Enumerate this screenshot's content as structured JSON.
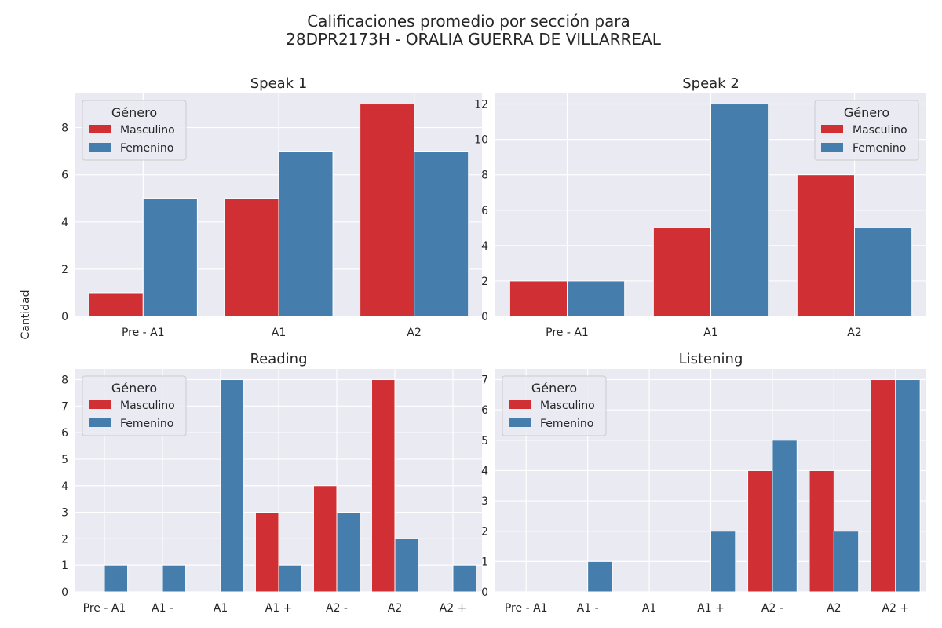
{
  "figure": {
    "title_line1": "Calificaciones promedio por sección para",
    "title_line2": "28DPR2173H - ORALIA GUERRA DE VILLARREAL",
    "ylabel": "Cantidad"
  },
  "colors": {
    "background": "#eaeaf2",
    "grid": "#ffffff",
    "masculino": "#d03033",
    "femenino": "#457dac"
  },
  "chart_data": [
    {
      "type": "bar",
      "title": "Speak 1",
      "categories": [
        "Pre - A1",
        "A1",
        "A2"
      ],
      "series": [
        {
          "name": "Masculino",
          "values": [
            1,
            5,
            9
          ]
        },
        {
          "name": "Femenino",
          "values": [
            5,
            7,
            7
          ]
        }
      ],
      "ylim": [
        0,
        9.45
      ],
      "yticks": [
        0,
        2,
        4,
        6,
        8
      ],
      "legend": {
        "title": "Género",
        "position": "top-left"
      },
      "grid": true
    },
    {
      "type": "bar",
      "title": "Speak 2",
      "categories": [
        "Pre - A1",
        "A1",
        "A2"
      ],
      "series": [
        {
          "name": "Masculino",
          "values": [
            2,
            5,
            8
          ]
        },
        {
          "name": "Femenino",
          "values": [
            2,
            12,
            5
          ]
        }
      ],
      "ylim": [
        0,
        12.6
      ],
      "yticks": [
        0,
        2,
        4,
        6,
        8,
        10,
        12
      ],
      "legend": {
        "title": "Género",
        "position": "top-right"
      },
      "grid": true
    },
    {
      "type": "bar",
      "title": "Reading",
      "categories": [
        "Pre - A1",
        "A1 -",
        "A1",
        "A1 +",
        "A2 -",
        "A2",
        "A2 +"
      ],
      "series": [
        {
          "name": "Masculino",
          "values": [
            0,
            0,
            0,
            3,
            4,
            8,
            0
          ]
        },
        {
          "name": "Femenino",
          "values": [
            1,
            1,
            8,
            1,
            3,
            2,
            1
          ]
        }
      ],
      "ylim": [
        0,
        8.4
      ],
      "yticks": [
        0,
        1,
        2,
        3,
        4,
        5,
        6,
        7,
        8
      ],
      "legend": {
        "title": "Género",
        "position": "top-left"
      },
      "grid": true
    },
    {
      "type": "bar",
      "title": "Listening",
      "categories": [
        "Pre - A1",
        "A1 -",
        "A1",
        "A1 +",
        "A2 -",
        "A2",
        "A2 +"
      ],
      "series": [
        {
          "name": "Masculino",
          "values": [
            0,
            0,
            0,
            0,
            4,
            4,
            7
          ]
        },
        {
          "name": "Femenino",
          "values": [
            0,
            1,
            0,
            2,
            5,
            2,
            7
          ]
        }
      ],
      "ylim": [
        0,
        7.35
      ],
      "yticks": [
        0,
        1,
        2,
        3,
        4,
        5,
        6,
        7
      ],
      "legend": {
        "title": "Género",
        "position": "top-left"
      },
      "grid": true
    }
  ]
}
